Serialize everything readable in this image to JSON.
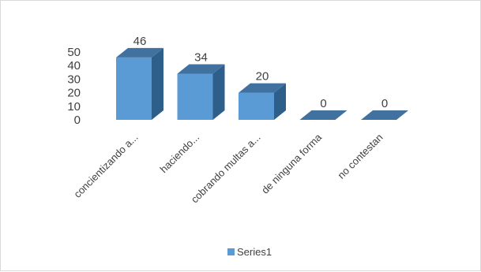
{
  "chart_data": {
    "type": "bar",
    "style": "3d-column",
    "categories": [
      "concientizando a...",
      "haciendo...",
      "cobrando multas a...",
      "de ninguna forma",
      "no contestan"
    ],
    "series": [
      {
        "name": "Series1",
        "values": [
          46,
          34,
          20,
          0,
          0
        ]
      }
    ],
    "ylim": [
      0,
      50
    ],
    "yticks": [
      0,
      10,
      20,
      30,
      40,
      50
    ],
    "data_labels": [
      "46",
      "34",
      "20",
      "0",
      "0"
    ],
    "grid": false,
    "legend": "bottom",
    "colors": {
      "front": "#5b9bd5",
      "side": "#2e5f8a",
      "top": "#41729f"
    }
  }
}
